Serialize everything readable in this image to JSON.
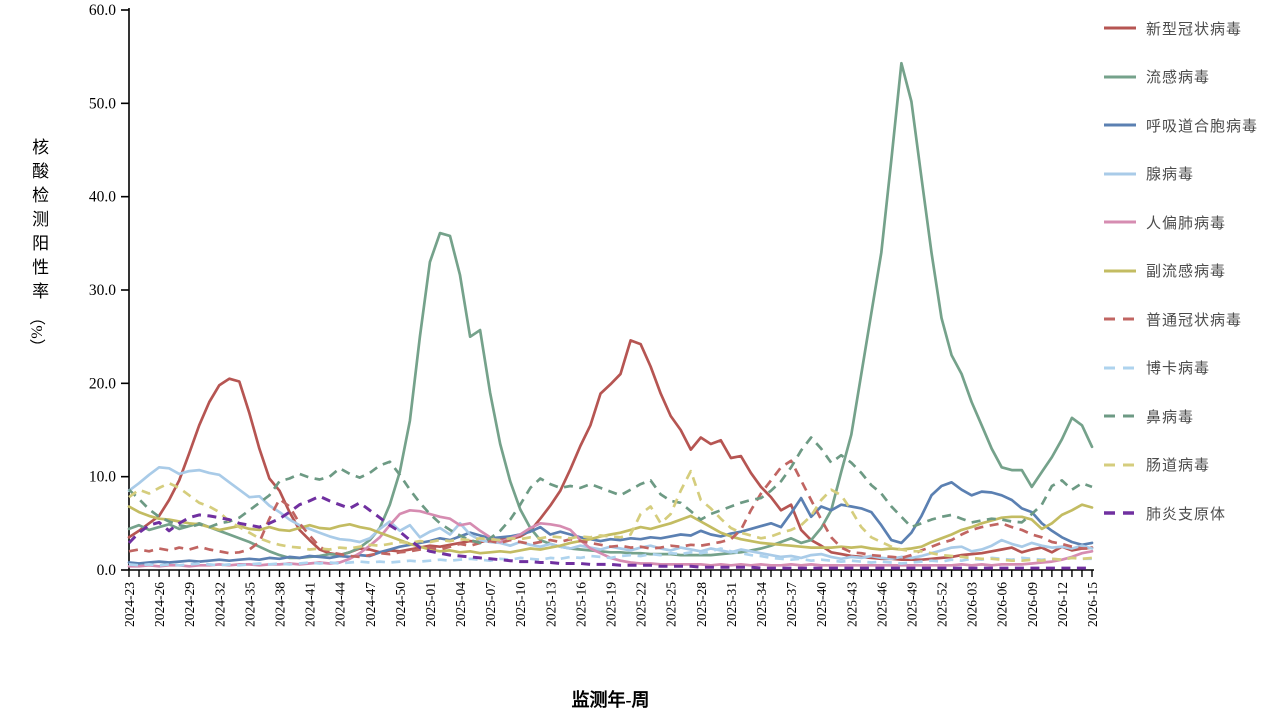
{
  "chart_data": {
    "type": "line",
    "title": "",
    "xlabel": "监测年-周",
    "ylabel": "核酸检测阳性率（%）",
    "ylabel_chars": "核酸检测阳性率",
    "ylabel_unit": "（%）",
    "ylim": [
      0,
      60
    ],
    "y_tick_labels": [
      "0.0",
      "10.0",
      "20.0",
      "30.0",
      "40.0",
      "50.0",
      "60.0"
    ],
    "n_points": 97,
    "x_tick_every_n_weeks": 3,
    "x_tick_labels": [
      "2024-23",
      "2024-26",
      "2024-29",
      "2024-32",
      "2024-35",
      "2024-38",
      "2024-41",
      "2024-44",
      "2024-47",
      "2024-50",
      "2025-01",
      "2025-04",
      "2025-07",
      "2025-10",
      "2025-13",
      "2025-16",
      "2025-19",
      "2025-22",
      "2025-25",
      "2025-28",
      "2025-31",
      "2025-34",
      "2025-37",
      "2025-40",
      "2025-43",
      "2025-46",
      "2025-49",
      "2025-52",
      "2026-03",
      "2026-06",
      "2026-09",
      "2026-12",
      "2026-15"
    ],
    "grid": false,
    "legend_position": "right",
    "axis_color": "#000000",
    "series": [
      {
        "name": "新型冠状病毒",
        "color": "#b65552",
        "dash": "solid",
        "values": [
          3.5,
          4.2,
          5.0,
          5.8,
          7.5,
          9.6,
          12.5,
          15.5,
          18.0,
          19.8,
          20.5,
          20.2,
          16.8,
          13.0,
          9.8,
          8.5,
          6.2,
          4.3,
          3.2,
          2.2,
          1.8,
          1.6,
          1.9,
          2.3,
          2.2,
          1.9,
          2.1,
          2.0,
          2.2,
          2.4,
          2.6,
          2.5,
          2.7,
          2.9,
          3.1,
          3.0,
          3.2,
          3.4,
          3.3,
          3.6,
          4.2,
          5.5,
          6.9,
          8.5,
          10.8,
          13.3,
          15.5,
          18.9,
          19.9,
          21.0,
          24.6,
          24.2,
          21.8,
          18.9,
          16.5,
          15.0,
          12.9,
          14.2,
          13.5,
          13.9,
          12.0,
          12.2,
          10.4,
          8.9,
          7.8,
          6.4,
          7.0,
          4.3,
          3.2,
          2.6,
          1.9,
          1.7,
          1.5,
          1.4,
          1.3,
          1.2,
          1.2,
          1.1,
          1.1,
          1.1,
          1.2,
          1.3,
          1.4,
          1.6,
          1.7,
          1.8,
          2.0,
          2.2,
          2.4,
          1.9,
          2.2,
          2.4,
          1.9,
          2.5,
          2.1,
          2.3,
          2.4
        ]
      },
      {
        "name": "流感病毒",
        "color": "#75a28b",
        "dash": "solid",
        "values": [
          4.4,
          4.8,
          4.3,
          4.6,
          4.9,
          4.4,
          4.7,
          5.0,
          4.6,
          4.2,
          3.8,
          3.4,
          3.0,
          2.5,
          2.0,
          1.6,
          1.3,
          1.3,
          1.4,
          1.5,
          1.7,
          1.6,
          1.9,
          2.4,
          3.2,
          4.5,
          7.0,
          10.5,
          16.0,
          25.0,
          33.0,
          36.1,
          35.8,
          31.6,
          25.0,
          25.7,
          19.0,
          13.5,
          9.5,
          6.5,
          4.5,
          3.2,
          2.8,
          2.5,
          2.3,
          2.2,
          2.1,
          2.0,
          1.9,
          1.9,
          1.8,
          1.8,
          1.7,
          1.7,
          1.7,
          1.6,
          1.6,
          1.6,
          1.6,
          1.7,
          1.8,
          1.9,
          2.1,
          2.3,
          2.6,
          3.0,
          3.4,
          2.9,
          3.2,
          4.5,
          6.4,
          10.5,
          14.5,
          21.0,
          27.5,
          34.0,
          44.0,
          54.3,
          50.2,
          42.0,
          34.0,
          27.0,
          23.0,
          21.0,
          18.0,
          15.5,
          13.0,
          11.0,
          10.7,
          10.7,
          8.9,
          10.5,
          12.1,
          14.0,
          16.3,
          15.5,
          13.2
        ]
      },
      {
        "name": "呼吸道合胞病毒",
        "color": "#5b80b2",
        "dash": "solid",
        "values": [
          0.8,
          0.7,
          0.8,
          0.9,
          0.8,
          0.9,
          1.0,
          0.9,
          1.0,
          1.1,
          1.0,
          1.1,
          1.2,
          1.1,
          1.3,
          1.2,
          1.4,
          1.3,
          1.5,
          1.4,
          1.3,
          1.5,
          1.4,
          1.6,
          1.5,
          1.9,
          2.2,
          2.5,
          2.7,
          2.9,
          3.1,
          3.4,
          3.2,
          3.6,
          4.0,
          3.7,
          3.4,
          3.5,
          3.6,
          3.8,
          4.1,
          4.6,
          3.8,
          4.1,
          3.8,
          3.5,
          3.3,
          3.1,
          3.3,
          3.2,
          3.4,
          3.3,
          3.5,
          3.4,
          3.6,
          3.8,
          3.7,
          4.2,
          3.8,
          3.6,
          3.9,
          4.1,
          4.4,
          4.7,
          5.0,
          4.6,
          6.1,
          7.7,
          5.7,
          6.8,
          6.4,
          7.0,
          6.8,
          6.6,
          6.2,
          4.8,
          3.2,
          2.9,
          4.0,
          5.8,
          8.0,
          9.0,
          9.4,
          8.6,
          8.0,
          8.4,
          8.3,
          8.0,
          7.5,
          6.6,
          6.2,
          5.0,
          4.2,
          3.5,
          3.0,
          2.7,
          2.9
        ]
      },
      {
        "name": "腺病毒",
        "color": "#a9cbe8",
        "dash": "solid",
        "values": [
          8.5,
          9.3,
          10.2,
          11.0,
          10.9,
          10.3,
          10.6,
          10.7,
          10.4,
          10.2,
          9.4,
          8.6,
          7.8,
          7.9,
          6.9,
          6.2,
          5.4,
          4.8,
          4.4,
          4.0,
          3.6,
          3.3,
          3.2,
          3.0,
          3.4,
          4.4,
          5.2,
          4.2,
          4.8,
          3.5,
          4.1,
          4.5,
          3.8,
          5.0,
          3.8,
          3.2,
          3.0,
          2.9,
          2.6,
          3.0,
          2.7,
          2.5,
          2.8,
          2.5,
          2.3,
          2.6,
          2.4,
          2.2,
          2.5,
          2.3,
          2.1,
          2.4,
          2.6,
          2.3,
          2.1,
          2.4,
          2.2,
          2.0,
          2.3,
          2.1,
          1.9,
          2.2,
          2.0,
          1.8,
          1.6,
          1.4,
          1.5,
          1.3,
          1.6,
          1.7,
          1.4,
          1.2,
          1.4,
          1.3,
          1.5,
          1.3,
          1.2,
          1.4,
          1.3,
          1.5,
          1.8,
          2.1,
          2.4,
          2.5,
          2.0,
          2.2,
          2.6,
          3.2,
          2.8,
          2.5,
          2.9,
          2.6,
          2.4,
          2.5,
          2.3,
          2.6,
          2.3
        ]
      },
      {
        "name": "人偏肺病毒",
        "color": "#d68cb1",
        "dash": "solid",
        "values": [
          0.4,
          0.4,
          0.5,
          0.4,
          0.5,
          0.5,
          0.4,
          0.5,
          0.5,
          0.6,
          0.5,
          0.6,
          0.6,
          0.5,
          0.6,
          0.6,
          0.7,
          0.6,
          0.7,
          0.8,
          0.7,
          0.8,
          1.2,
          1.8,
          2.6,
          3.5,
          4.8,
          6.0,
          6.4,
          6.3,
          6.0,
          5.7,
          5.5,
          4.8,
          5.0,
          4.2,
          3.5,
          3.0,
          3.4,
          3.8,
          4.5,
          5.0,
          4.9,
          4.7,
          4.3,
          3.2,
          2.3,
          1.8,
          1.3,
          1.0,
          0.8,
          0.7,
          0.7,
          0.6,
          0.6,
          0.6,
          0.6,
          0.6,
          0.5,
          0.6,
          0.5,
          0.6,
          0.5,
          0.6,
          0.5,
          0.5,
          0.6,
          0.5,
          0.6,
          0.5,
          0.5,
          0.5,
          0.5,
          0.5,
          0.5,
          0.5,
          0.5,
          0.5,
          0.5,
          0.5,
          0.5,
          0.5,
          0.5,
          0.6,
          0.5,
          0.6,
          0.5,
          0.6,
          0.6,
          0.6,
          0.7,
          0.8,
          0.9,
          1.1,
          1.4,
          1.8,
          2.0
        ]
      },
      {
        "name": "副流感病毒",
        "color": "#c3bc62",
        "dash": "solid",
        "values": [
          6.8,
          6.2,
          5.8,
          5.5,
          5.4,
          5.2,
          5.0,
          4.9,
          4.6,
          4.3,
          4.5,
          4.7,
          4.4,
          4.3,
          4.6,
          4.3,
          4.2,
          4.5,
          4.8,
          4.5,
          4.4,
          4.7,
          4.9,
          4.6,
          4.4,
          4.0,
          3.6,
          3.2,
          2.8,
          2.5,
          2.2,
          2.0,
          2.1,
          1.9,
          2.0,
          1.8,
          1.9,
          2.0,
          1.9,
          2.1,
          2.3,
          2.2,
          2.4,
          2.6,
          2.9,
          3.1,
          3.3,
          3.6,
          3.8,
          4.0,
          4.3,
          4.6,
          4.4,
          4.7,
          5.0,
          5.4,
          5.8,
          5.2,
          4.6,
          4.0,
          3.6,
          3.3,
          3.1,
          2.9,
          2.8,
          2.7,
          2.6,
          2.5,
          2.4,
          2.4,
          2.4,
          2.5,
          2.4,
          2.5,
          2.3,
          2.2,
          2.3,
          2.2,
          2.3,
          2.5,
          3.0,
          3.4,
          3.8,
          4.3,
          4.6,
          5.0,
          5.3,
          5.6,
          5.7,
          5.7,
          5.4,
          4.4,
          5.0,
          5.9,
          6.4,
          7.0,
          6.7
        ]
      },
      {
        "name": "普通冠状病毒",
        "color": "#c16562",
        "dash": "dashed",
        "values": [
          2.0,
          2.2,
          2.0,
          2.3,
          2.1,
          2.4,
          2.2,
          2.5,
          2.2,
          2.0,
          1.8,
          1.9,
          2.2,
          3.0,
          5.5,
          7.6,
          6.8,
          5.0,
          3.7,
          2.5,
          1.9,
          1.7,
          1.5,
          1.4,
          1.6,
          1.8,
          1.7,
          1.9,
          2.0,
          2.2,
          2.4,
          2.2,
          2.5,
          2.8,
          2.6,
          2.9,
          3.1,
          2.9,
          3.2,
          3.0,
          2.8,
          3.0,
          3.2,
          3.0,
          3.3,
          3.1,
          2.9,
          2.7,
          2.5,
          2.6,
          2.4,
          2.5,
          2.3,
          2.4,
          2.6,
          2.5,
          2.7,
          2.6,
          2.8,
          3.0,
          3.3,
          4.3,
          6.4,
          8.2,
          9.6,
          11.0,
          11.7,
          9.6,
          7.5,
          5.4,
          3.5,
          2.4,
          1.9,
          1.8,
          1.6,
          1.5,
          1.4,
          1.3,
          1.6,
          2.1,
          2.5,
          2.9,
          3.2,
          3.8,
          4.3,
          4.6,
          4.8,
          5.0,
          4.6,
          4.3,
          3.8,
          3.5,
          3.0,
          2.8,
          2.5,
          2.3,
          2.3
        ]
      },
      {
        "name": "博卡病毒",
        "color": "#aed3ee",
        "dash": "dashed",
        "values": [
          0.6,
          0.5,
          0.6,
          0.5,
          0.6,
          0.5,
          0.6,
          0.7,
          0.6,
          0.5,
          0.6,
          0.5,
          0.6,
          0.7,
          0.6,
          0.7,
          0.6,
          0.7,
          0.8,
          0.7,
          0.8,
          0.7,
          0.8,
          0.9,
          0.8,
          0.9,
          0.8,
          0.9,
          1.0,
          0.9,
          1.0,
          1.1,
          1.0,
          1.1,
          1.2,
          1.1,
          1.0,
          1.2,
          1.1,
          1.3,
          1.2,
          1.1,
          1.3,
          1.2,
          1.4,
          1.3,
          1.5,
          1.4,
          1.3,
          1.5,
          1.6,
          1.5,
          1.7,
          1.6,
          1.8,
          1.7,
          1.9,
          1.8,
          2.0,
          2.3,
          2.0,
          1.8,
          1.6,
          1.5,
          1.3,
          1.2,
          1.1,
          1.2,
          1.0,
          1.1,
          1.0,
          0.9,
          1.0,
          0.9,
          0.8,
          0.9,
          0.8,
          0.7,
          0.8,
          0.9,
          1.0,
          0.9,
          1.1,
          1.0,
          1.2,
          1.1,
          1.3,
          1.2,
          1.1,
          1.3,
          1.2,
          1.1,
          1.2,
          1.1,
          1.3,
          1.2,
          1.2
        ]
      },
      {
        "name": "鼻病毒",
        "color": "#6d9a84",
        "dash": "dashed",
        "values": [
          8.6,
          7.6,
          6.5,
          5.7,
          5.2,
          4.8,
          4.6,
          4.9,
          4.6,
          5.0,
          5.2,
          5.6,
          6.4,
          7.2,
          8.0,
          9.5,
          9.8,
          10.3,
          9.9,
          9.7,
          10.0,
          10.9,
          10.3,
          9.9,
          10.4,
          11.2,
          11.6,
          10.2,
          8.6,
          7.2,
          6.0,
          5.0,
          4.3,
          3.7,
          3.2,
          2.9,
          3.4,
          4.2,
          5.4,
          7.0,
          8.8,
          9.8,
          9.2,
          8.8,
          9.0,
          8.8,
          9.2,
          8.8,
          8.4,
          8.0,
          8.6,
          9.2,
          9.6,
          8.1,
          7.4,
          7.2,
          6.3,
          5.4,
          6.0,
          6.4,
          6.8,
          7.2,
          7.5,
          7.7,
          8.5,
          9.5,
          11.0,
          12.8,
          14.2,
          13.0,
          11.5,
          12.3,
          11.5,
          10.4,
          9.1,
          8.2,
          6.8,
          5.7,
          4.6,
          5.0,
          5.4,
          5.7,
          5.9,
          5.5,
          5.1,
          5.3,
          5.5,
          5.4,
          5.2,
          5.1,
          6.0,
          7.0,
          9.0,
          9.6,
          8.6,
          9.3,
          8.9
        ]
      },
      {
        "name": "肠道病毒",
        "color": "#d5cd7d",
        "dash": "dashed",
        "values": [
          7.8,
          8.6,
          8.2,
          8.8,
          9.3,
          8.8,
          8.0,
          7.2,
          6.8,
          6.2,
          5.2,
          4.6,
          4.0,
          3.4,
          3.0,
          2.7,
          2.5,
          2.4,
          2.2,
          2.3,
          2.2,
          2.4,
          2.3,
          2.5,
          2.7,
          2.6,
          2.8,
          3.0,
          2.9,
          3.1,
          3.0,
          3.2,
          3.1,
          3.3,
          3.2,
          3.4,
          3.3,
          3.2,
          3.4,
          3.3,
          3.5,
          3.4,
          3.6,
          3.5,
          3.4,
          3.6,
          3.5,
          3.7,
          3.6,
          3.5,
          3.8,
          6.0,
          6.8,
          5.0,
          6.0,
          8.5,
          10.6,
          7.5,
          6.6,
          5.5,
          4.5,
          4.0,
          3.7,
          3.4,
          3.6,
          4.0,
          4.3,
          4.8,
          5.8,
          7.5,
          8.6,
          8.0,
          6.4,
          4.6,
          3.5,
          3.0,
          2.5,
          2.2,
          2.0,
          2.0,
          1.8,
          1.6,
          1.5,
          1.4,
          1.3,
          1.2,
          1.2,
          1.1,
          1.0,
          1.0,
          1.1,
          1.0,
          1.2,
          1.1,
          1.3,
          1.2,
          1.3
        ]
      },
      {
        "name": "肺炎支原体",
        "color": "#7030a0",
        "dash": "dashed",
        "values": [
          2.9,
          4.0,
          4.8,
          5.1,
          4.2,
          5.0,
          5.6,
          5.9,
          5.8,
          5.6,
          5.4,
          5.0,
          4.8,
          4.6,
          5.0,
          5.5,
          6.2,
          7.0,
          7.4,
          7.9,
          7.4,
          7.0,
          6.6,
          7.2,
          6.4,
          5.6,
          4.8,
          4.1,
          3.2,
          2.4,
          2.0,
          1.8,
          1.6,
          1.5,
          1.4,
          1.3,
          1.2,
          1.1,
          1.0,
          0.9,
          0.9,
          0.8,
          0.8,
          0.7,
          0.7,
          0.7,
          0.6,
          0.6,
          0.6,
          0.5,
          0.5,
          0.5,
          0.5,
          0.4,
          0.4,
          0.4,
          0.4,
          0.3,
          0.3,
          0.3,
          0.3,
          0.3,
          0.3,
          0.2,
          0.2,
          0.2,
          0.2,
          0.2,
          0.2,
          0.2,
          0.2,
          0.2,
          0.2,
          0.2,
          0.2,
          0.2,
          0.2,
          0.2,
          0.2,
          0.2,
          0.2,
          0.2,
          0.2,
          0.2,
          0.2,
          0.2,
          0.2,
          0.2,
          0.2,
          0.2,
          0.2,
          0.2,
          0.2,
          0.2,
          0.2,
          0.2,
          0.2
        ]
      }
    ]
  }
}
